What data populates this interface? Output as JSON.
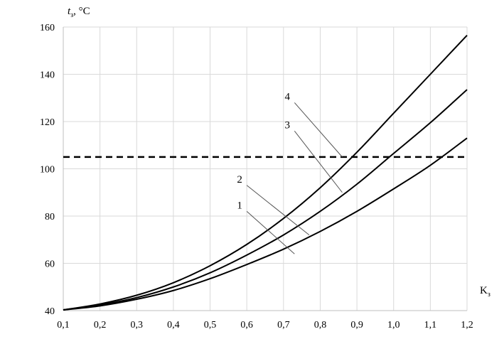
{
  "chart_data": {
    "type": "line",
    "ylabel_italic": "t",
    "ylabel_sub": "з",
    "ylabel_rest": ", °C",
    "xlabel_main": "K",
    "xlabel_sub": "з",
    "xlim": [
      0.1,
      1.2
    ],
    "ylim": [
      40,
      160
    ],
    "x_ticks": [
      "0,1",
      "0,2",
      "0,3",
      "0,4",
      "0,5",
      "0,6",
      "0,7",
      "0,8",
      "0,9",
      "1,0",
      "1,1",
      "1,2"
    ],
    "y_ticks": [
      "40",
      "60",
      "80",
      "100",
      "120",
      "140",
      "160"
    ],
    "grid": true,
    "x": [
      0.1,
      0.2,
      0.3,
      0.4,
      0.5,
      0.6,
      0.7,
      0.8,
      0.9,
      1.0,
      1.1,
      1.2
    ],
    "series": [
      {
        "name": "1",
        "values": [
          40.3,
          42.0,
          44.8,
          48.5,
          53.5,
          59.5,
          66.0,
          73.5,
          82.0,
          91.5,
          101.5,
          113.0
        ]
      },
      {
        "name": "2",
        "values": [
          40.3,
          42.4,
          45.5,
          50.0,
          56.0,
          63.5,
          72.0,
          82.0,
          93.5,
          106.5,
          119.5,
          133.5
        ]
      },
      {
        "name": "3",
        "values": [
          40.3,
          42.8,
          46.5,
          51.8,
          59.0,
          68.0,
          79.0,
          92.0,
          107.0,
          123.5,
          140.0,
          156.5
        ]
      }
    ],
    "threshold": {
      "name": "4",
      "value": 105,
      "style": "dashed"
    },
    "callouts": [
      {
        "label": "1",
        "x_from": 0.6,
        "y_from": 82,
        "x_to": 0.73,
        "y_to": 64
      },
      {
        "label": "2",
        "x_from": 0.6,
        "y_from": 93,
        "x_to": 0.77,
        "y_to": 72
      },
      {
        "label": "3",
        "x_from": 0.73,
        "y_from": 116,
        "x_to": 0.86,
        "y_to": 90
      },
      {
        "label": "4",
        "x_from": 0.73,
        "y_from": 128,
        "x_to": 0.86,
        "y_to": 105
      }
    ],
    "colors": {
      "line": "#000000",
      "grid": "#d9d9d9"
    }
  }
}
